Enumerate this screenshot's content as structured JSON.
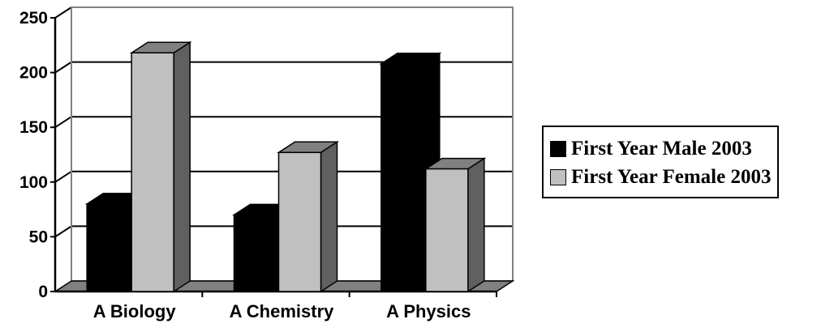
{
  "chart_data": {
    "type": "bar",
    "title": "",
    "xlabel": "",
    "ylabel": "",
    "categories": [
      "A Biology",
      "A Chemistry",
      "A Physics"
    ],
    "series": [
      {
        "name": "First Year Male 2003",
        "values": [
          80,
          70,
          208
        ],
        "color": "#000000"
      },
      {
        "name": "First Year Female 2003",
        "values": [
          218,
          127,
          112
        ],
        "color": "#c0c0c0"
      }
    ],
    "ylim": [
      0,
      250
    ],
    "yticks": [
      "0",
      "50",
      "100",
      "150",
      "200",
      "250"
    ],
    "grid": true,
    "legend": "right",
    "style": "3d-column"
  }
}
